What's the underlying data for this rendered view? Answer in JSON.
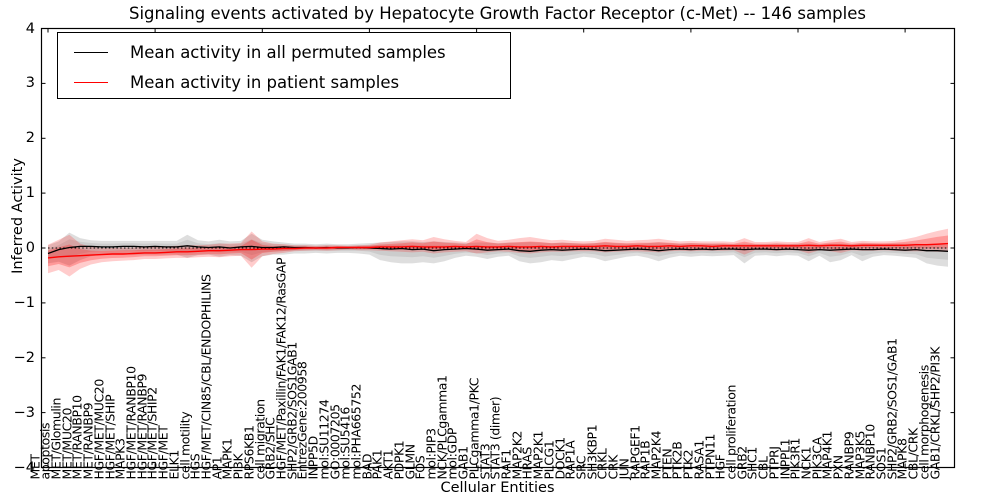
{
  "title": "Signaling events activated by Hepatocyte Growth Factor Receptor (c-Met) -- 146 samples",
  "legend": [
    {
      "label": "Mean activity in all permuted samples",
      "color": "#000000"
    },
    {
      "label": "Mean activity in patient samples",
      "color": "#ff0000"
    }
  ],
  "chart_data": {
    "type": "line",
    "title": "Signaling events activated by Hepatocyte Growth Factor Receptor (c-Met) -- 146 samples",
    "xlabel": "Cellular Entities",
    "ylabel": "Inferred Activity",
    "ylim": [
      -4,
      4
    ],
    "yticks": [
      4,
      3,
      2,
      1,
      0,
      -1,
      -2,
      -3,
      -4
    ],
    "ytick_labels": [
      "4",
      "3",
      "2",
      "1",
      "0",
      "−1",
      "−2",
      "−3",
      "−4"
    ],
    "grid": false,
    "legend_position": "upper left",
    "zero_line": true,
    "categories": [
      "MET",
      "apoptosis",
      "MET/Glomulin",
      "MET/MUC20",
      "MET/RANBP10",
      "MET/RANBP9",
      "HGF/MET/MUC20",
      "HGF/MET/SHIP",
      "MAPK3",
      "HGF/MET/RANBP10",
      "HGF/MET/RANBP9",
      "HGF/MET/SHIP2",
      "HGF/MET",
      "ELK1",
      "cell motility",
      "HGS",
      "HGF/MET/CIN85/CBL/ENDOPHILINS",
      "AP1",
      "MAPK1",
      "PI3K",
      "RPS6KB1",
      "cell migration",
      "GRB2/SHC",
      "HGF/MET/Paxillin/FAK1/FAK12/RasGAP",
      "SHP2/GRB2/SOS1GAB1",
      "EntrezGene:200958",
      "INPP5D",
      "mol:SU11274",
      "GO:0007205",
      "mol:SU5416",
      "mol:PHA665752",
      "BAD",
      "PAK1",
      "AKT1",
      "PDPK1",
      "GLMN",
      "FOS",
      "mol:PIP3",
      "NCK/PLCgamma1",
      "mol:GDP",
      "GAB1",
      "PLCgamma1/PKC",
      "STAT3",
      "STAT3 (dimer)",
      "RAF1",
      "MAP2K2",
      "HRAS",
      "MAP2K1",
      "PLCG1",
      "DOCK1",
      "RAP1A",
      "SRC",
      "SH3KBP1",
      "CRKL",
      "CRK",
      "JUN",
      "RAPGEF1",
      "RAP1B",
      "MAP2K4",
      "PTEN",
      "PTK2B",
      "PTK2",
      "RASA1",
      "PTPN11",
      "HGF",
      "cell proliferation",
      "GRB2",
      "SHC1",
      "CBL",
      "PTPRJ",
      "INPPL1",
      "PIK3R1",
      "NCK1",
      "PIK3CA",
      "MAP4K1",
      "PXN",
      "RANBP9",
      "MAP3K5",
      "RANBP10",
      "SOS1",
      "SHP2/GRB2/SOS1/GAB1",
      "MAPK8",
      "CBL/CRK",
      "cell morphogenesis",
      "GAB1/CRKL/SHP2/PI3K"
    ],
    "series": [
      {
        "name": "Mean activity in all permuted samples",
        "color": "#000000",
        "values": [
          -0.1,
          -0.03,
          0.01,
          0.03,
          0.03,
          0.02,
          0.02,
          0.03,
          0.03,
          0.02,
          0.03,
          0.02,
          0.02,
          0.04,
          0.02,
          0.01,
          0.02,
          0.0,
          0.02,
          0.03,
          0.01,
          0.01,
          0.02,
          0.01,
          0.01,
          0.0,
          0.01,
          0.0,
          0.0,
          0.01,
          0.0,
          -0.01,
          -0.02,
          -0.01,
          -0.03,
          -0.02,
          -0.05,
          -0.03,
          -0.02,
          -0.01,
          -0.02,
          -0.04,
          -0.03,
          -0.02,
          -0.05,
          -0.06,
          -0.04,
          -0.03,
          -0.04,
          -0.03,
          -0.02,
          -0.03,
          -0.05,
          -0.04,
          -0.03,
          -0.02,
          -0.03,
          -0.05,
          -0.03,
          -0.02,
          -0.03,
          -0.02,
          -0.03,
          -0.02,
          -0.02,
          -0.03,
          -0.02,
          -0.02,
          -0.03,
          -0.02,
          -0.03,
          -0.04,
          -0.03,
          -0.04,
          -0.03,
          -0.02,
          -0.03,
          -0.03,
          -0.02,
          -0.03,
          -0.04,
          -0.03,
          -0.05,
          -0.05,
          -0.06
        ]
      },
      {
        "name": "Mean activity in patient samples",
        "color": "#ff0000",
        "values": [
          -0.18,
          -0.16,
          -0.15,
          -0.14,
          -0.13,
          -0.12,
          -0.11,
          -0.11,
          -0.1,
          -0.09,
          -0.09,
          -0.08,
          -0.07,
          -0.07,
          -0.06,
          -0.05,
          -0.05,
          -0.04,
          -0.03,
          -0.03,
          -0.02,
          -0.02,
          -0.01,
          -0.01,
          0.0,
          0.0,
          0.0,
          0.01,
          0.01,
          0.01,
          0.01,
          0.02,
          0.02,
          0.02,
          0.03,
          0.02,
          0.02,
          0.02,
          0.03,
          0.02,
          0.03,
          0.02,
          0.02,
          0.03,
          0.02,
          0.02,
          0.03,
          0.02,
          0.03,
          0.03,
          0.03,
          0.03,
          0.04,
          0.03,
          0.03,
          0.04,
          0.03,
          0.03,
          0.04,
          0.03,
          0.04,
          0.04,
          0.03,
          0.04,
          0.04,
          0.04,
          0.04,
          0.04,
          0.04,
          0.04,
          0.04,
          0.05,
          0.04,
          0.05,
          0.05,
          0.04,
          0.05,
          0.05,
          0.05,
          0.05,
          0.05,
          0.06,
          0.06,
          0.07,
          0.08
        ]
      }
    ],
    "bands": [
      {
        "name": "permuted-samples-band",
        "color": "#000000",
        "hi": [
          0.05,
          0.12,
          0.28,
          0.18,
          0.14,
          0.13,
          0.13,
          0.13,
          0.13,
          0.13,
          0.13,
          0.13,
          0.13,
          0.24,
          0.14,
          0.12,
          0.15,
          0.12,
          0.13,
          0.26,
          0.15,
          0.12,
          0.1,
          0.08,
          0.08,
          0.07,
          0.08,
          0.07,
          0.07,
          0.08,
          0.09,
          0.1,
          0.11,
          0.12,
          0.12,
          0.11,
          0.12,
          0.11,
          0.1,
          0.09,
          0.1,
          0.1,
          0.09,
          0.1,
          0.1,
          0.11,
          0.1,
          0.09,
          0.1,
          0.09,
          0.08,
          0.09,
          0.1,
          0.09,
          0.08,
          0.08,
          0.09,
          0.1,
          0.09,
          0.08,
          0.09,
          0.08,
          0.08,
          0.08,
          0.07,
          0.08,
          0.07,
          0.07,
          0.08,
          0.07,
          0.08,
          0.08,
          0.07,
          0.08,
          0.08,
          0.07,
          0.08,
          0.08,
          0.07,
          0.08,
          0.08,
          0.08,
          0.07,
          0.07,
          0.06
        ],
        "lo": [
          -0.28,
          -0.25,
          -0.32,
          -0.22,
          -0.15,
          -0.12,
          -0.12,
          -0.12,
          -0.12,
          -0.12,
          -0.12,
          -0.12,
          -0.12,
          -0.18,
          -0.13,
          -0.12,
          -0.16,
          -0.13,
          -0.14,
          -0.26,
          -0.15,
          -0.12,
          -0.12,
          -0.1,
          -0.1,
          -0.09,
          -0.1,
          -0.09,
          -0.09,
          -0.1,
          -0.12,
          -0.22,
          -0.26,
          -0.28,
          -0.28,
          -0.26,
          -0.28,
          -0.24,
          -0.18,
          -0.14,
          -0.16,
          -0.2,
          -0.16,
          -0.14,
          -0.24,
          -0.28,
          -0.26,
          -0.22,
          -0.24,
          -0.2,
          -0.16,
          -0.18,
          -0.24,
          -0.2,
          -0.16,
          -0.14,
          -0.18,
          -0.24,
          -0.18,
          -0.14,
          -0.16,
          -0.14,
          -0.15,
          -0.14,
          -0.13,
          -0.28,
          -0.14,
          -0.13,
          -0.15,
          -0.13,
          -0.14,
          -0.24,
          -0.14,
          -0.26,
          -0.22,
          -0.13,
          -0.24,
          -0.16,
          -0.13,
          -0.14,
          -0.16,
          -0.18,
          -0.28,
          -0.32,
          -0.34
        ]
      },
      {
        "name": "patient-samples-band",
        "color": "#ff0000",
        "hi": [
          0.06,
          0.15,
          0.24,
          0.08,
          0.02,
          0.0,
          0.0,
          0.01,
          0.01,
          0.02,
          0.02,
          0.03,
          0.04,
          0.05,
          0.05,
          0.06,
          0.08,
          0.08,
          0.09,
          0.3,
          0.12,
          0.08,
          0.07,
          0.05,
          0.05,
          0.04,
          0.05,
          0.05,
          0.04,
          0.05,
          0.06,
          0.1,
          0.12,
          0.14,
          0.16,
          0.14,
          0.2,
          0.16,
          0.13,
          0.11,
          0.26,
          0.18,
          0.13,
          0.15,
          0.18,
          0.2,
          0.17,
          0.14,
          0.15,
          0.13,
          0.12,
          0.13,
          0.17,
          0.15,
          0.13,
          0.14,
          0.15,
          0.17,
          0.14,
          0.12,
          0.13,
          0.12,
          0.12,
          0.12,
          0.11,
          0.18,
          0.11,
          0.11,
          0.12,
          0.11,
          0.11,
          0.18,
          0.11,
          0.14,
          0.17,
          0.11,
          0.13,
          0.12,
          0.12,
          0.13,
          0.16,
          0.2,
          0.26,
          0.31,
          0.35
        ],
        "lo": [
          -0.46,
          -0.4,
          -0.52,
          -0.38,
          -0.3,
          -0.26,
          -0.24,
          -0.23,
          -0.22,
          -0.2,
          -0.2,
          -0.19,
          -0.18,
          -0.18,
          -0.17,
          -0.16,
          -0.17,
          -0.15,
          -0.14,
          -0.36,
          -0.15,
          -0.11,
          -0.09,
          -0.06,
          -0.05,
          -0.04,
          -0.05,
          -0.04,
          -0.03,
          -0.04,
          -0.04,
          -0.05,
          -0.06,
          -0.07,
          -0.08,
          -0.07,
          -0.1,
          -0.08,
          -0.07,
          -0.06,
          -0.1,
          -0.08,
          -0.06,
          -0.07,
          -0.09,
          -0.1,
          -0.08,
          -0.07,
          -0.07,
          -0.06,
          -0.06,
          -0.06,
          -0.08,
          -0.07,
          -0.06,
          -0.06,
          -0.07,
          -0.08,
          -0.06,
          -0.05,
          -0.06,
          -0.05,
          -0.05,
          -0.05,
          -0.04,
          -0.12,
          -0.04,
          -0.04,
          -0.05,
          -0.04,
          -0.04,
          -0.1,
          -0.04,
          -0.06,
          -0.09,
          -0.04,
          -0.05,
          -0.05,
          -0.04,
          -0.05,
          -0.06,
          -0.06,
          -0.06,
          -0.07,
          -0.07
        ]
      }
    ]
  }
}
